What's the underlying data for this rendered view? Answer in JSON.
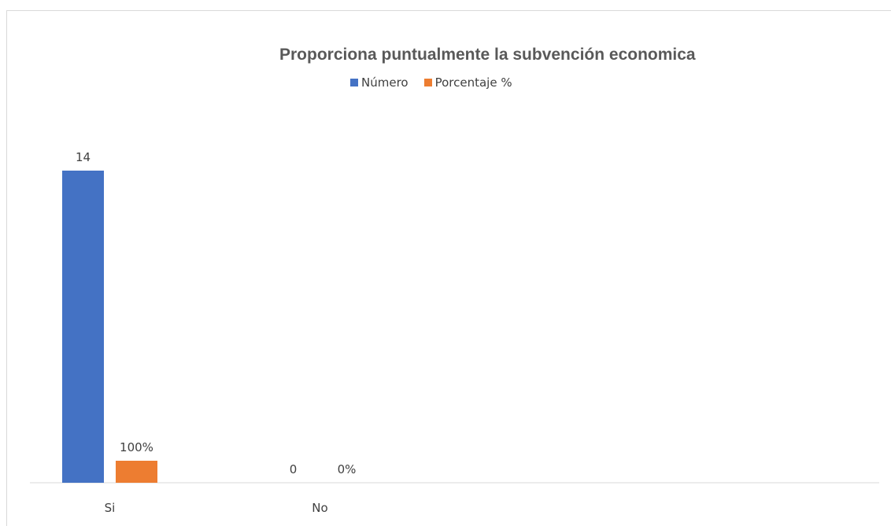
{
  "chart_data": {
    "type": "bar",
    "title": "Proporciona puntualmente la subvención economica",
    "categories": [
      "Si",
      "No"
    ],
    "series": [
      {
        "name": "Número",
        "values": [
          14,
          0
        ],
        "labels": [
          "14",
          "0"
        ],
        "color": "#4472c4"
      },
      {
        "name": "Porcentaje %",
        "values": [
          1.0,
          0.0
        ],
        "labels": [
          "100%",
          "0%"
        ],
        "color": "#ed7d31"
      }
    ],
    "legend_position": "top",
    "grid": false,
    "xlabel": "",
    "ylabel": ""
  }
}
